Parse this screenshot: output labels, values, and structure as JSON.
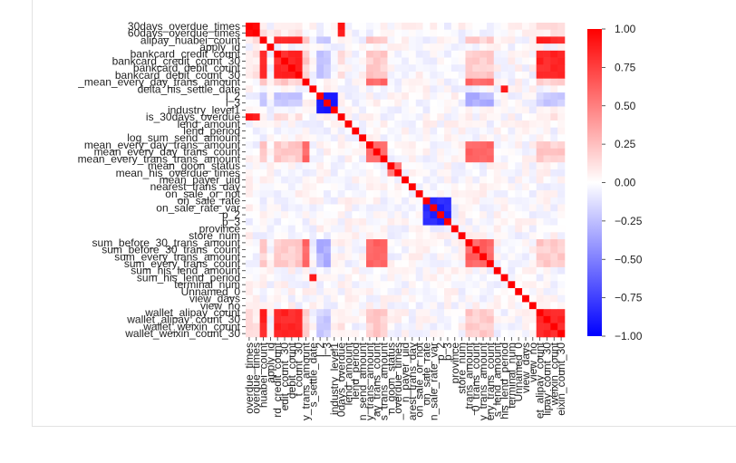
{
  "chart_data": {
    "type": "heatmap",
    "title": "",
    "xlabel": "",
    "ylabel": "",
    "labels": [
      "30days_overdue_times",
      "60days_overdue_times",
      "alipay_huabei_count",
      "apply_id",
      "bankcard_credit_count",
      "bankcard_credit_count_30",
      "bankcard_debit_count",
      "bankcard_debit_count_30",
      "_mean_every_day_trans_amount",
      "delta_his_settle_date",
      "l_2",
      "l_3",
      "industry_level1",
      "is_30days_overdue",
      "lend_amount",
      "lend_period",
      "log_sum_send_amount",
      "mean_every_day_trans_amount",
      "mean_every_day_trans_count",
      "mean_every_trans_trans_amount",
      "mean_goon_status",
      "mean_his_overdue_times",
      "mean_payer_uid",
      "nearest_trans_day",
      "on_sale_or_not",
      "on_sale_rate",
      "on_sale_rate_var",
      "p_2",
      "p_3",
      "province",
      "store_num",
      "sum_before_30_trans_amount",
      "sum_before_30_trans_count",
      "sum_every_trans_amount",
      "sum_every_trans_count",
      "sum_his_lend_amount",
      "sum_his_lend_period",
      "terminal_num",
      "Unnamed_0",
      "view_days",
      "view_no",
      "wallet_alipay_count",
      "wallet_alipay_count_30",
      "wallet_weixin_count",
      "wallet_weixin_count_30"
    ],
    "y_tick_labels": [
      "30days_overdue_times",
      "60days_overdue_times",
      "alipay_huabei_count",
      "apply_id",
      "bankcard_credit_count",
      "bankcard_credit_count_30",
      "bankcard_debit_count",
      "bankcard_debit_count_30",
      "_mean_every_day_trans_amount",
      "delta_his_settle_date",
      "l_2",
      "l_3",
      "industry_level1",
      "is_30days_overdue",
      "lend_amount",
      "lend_period",
      "log_sum_send_amount",
      "mean_every_day_trans_amount",
      "mean_every_day_trans_count",
      "mean_every_trans_trans_amount",
      "mean_goon_status",
      "mean_his_overdue_times",
      "mean_payer_uid",
      "nearest_trans_day",
      "on_sale_or_not",
      "on_sale_rate",
      "on_sale_rate_var",
      "p_2",
      "p_3",
      "province",
      "store_num",
      "sum_before_30_trans_amount",
      "sum_before_30_trans_count",
      "sum_every_trans_amount",
      "sum_every_trans_count",
      "sum_his_lend_amount",
      "sum_his_lend_period",
      "terminal_num",
      "Unnamed_0",
      "view_days",
      "view_no",
      "wallet_alipay_count",
      "wallet_alipay_count_30",
      "wallet_weixin_count",
      "wallet_weixin_count_30"
    ],
    "x_tick_labels": [
      "overdue_times",
      "overdue_times",
      "huabei_count",
      "apply_id",
      "rd_credit_count",
      "edit_count_30",
      "debit_count",
      "t_count_30",
      "y_trans_amount",
      "s_settle_date",
      "l_2",
      "l_3",
      "industry_level1",
      "0days_overdue",
      "lend_amount",
      "lend_period",
      "n_send_amount",
      "y_trans_amount",
      "ay_trans_count",
      "s_trans_amount",
      "n_goon_status",
      "_overdue_times",
      "n_payer_uid",
      "arest_trans_day",
      "on_sale_or_not",
      "on_sale_rate",
      "n_sale_rate_var",
      "p_2",
      "p_3",
      "province",
      "store_num",
      "_trans_amount",
      "0_trans_count",
      "y_trans_amount",
      "ery_trans_count",
      "s_lend_amount",
      "his_lend_period",
      "terminal_num",
      "Unnamed_0",
      "view_days",
      "view_no",
      "et_alipay_count",
      "lipay_count_30",
      "weixin_count",
      "eixin_count_30"
    ],
    "vmin": -1.0,
    "vmax": 1.0,
    "colormap": "bwr",
    "grid": false,
    "colorbar": {
      "ticks": [
        1.0,
        0.75,
        0.5,
        0.25,
        0.0,
        -0.25,
        -0.5,
        -0.75,
        -1.0
      ],
      "tick_labels": [
        "1.00",
        "0.75",
        "0.50",
        "0.25",
        "0.00",
        "−0.25",
        "−0.50",
        "−0.75",
        "−1.00"
      ],
      "placement": "right"
    },
    "groups": [
      {
        "members": [
          0,
          1,
          13
        ],
        "r": 0.92
      },
      {
        "members": [
          2,
          4,
          5,
          6,
          7,
          41,
          42,
          43,
          44
        ],
        "r": 0.85
      },
      {
        "members": [
          8,
          17,
          18,
          19,
          31,
          32,
          33,
          34
        ],
        "r": 0.6
      },
      {
        "members": [
          10,
          11,
          12
        ],
        "r": -0.9
      },
      {
        "members": [
          25,
          26,
          27,
          28
        ],
        "r": -0.85
      },
      {
        "members": [
          9,
          36
        ],
        "r": 0.9
      },
      {
        "members": [
          20,
          21
        ],
        "r": 0.55
      }
    ],
    "cross_groups": [
      {
        "a": [
          2,
          4,
          5,
          6,
          7,
          41,
          42,
          43,
          44
        ],
        "b": [
          8,
          17,
          18,
          19,
          31,
          32,
          33,
          34
        ],
        "r": 0.2
      },
      {
        "a": [
          10,
          11
        ],
        "b": [
          2,
          4,
          5,
          6,
          7,
          41,
          42,
          43,
          44
        ],
        "r": -0.2
      },
      {
        "a": [
          10,
          11
        ],
        "b": [
          31,
          32,
          33,
          34
        ],
        "r": -0.3
      },
      {
        "a": [
          0,
          1,
          13
        ],
        "b": [
          2,
          4,
          5,
          6,
          7,
          41,
          42,
          43,
          44
        ],
        "r": 0.1
      }
    ],
    "diagonal": 1.0
  }
}
